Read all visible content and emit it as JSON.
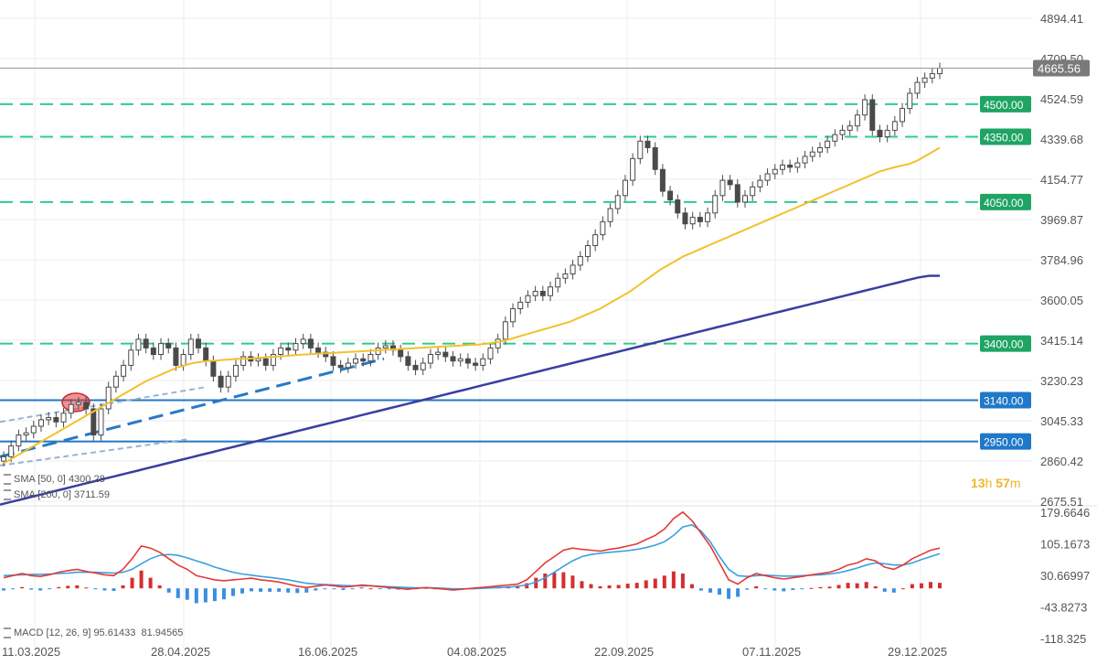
{
  "colors": {
    "candle": "#4a4a4a",
    "sma50": "#f2c12e",
    "sma200": "#3a3f9e",
    "support_dashed": "#2ecc8a",
    "support_solid": "#1f78c8",
    "trendline": "#2879c6",
    "macd_line": "#e53935",
    "signal_line": "#3aa0e0",
    "hist_pos": "#d32f2f",
    "hist_neg": "#3a8ee0",
    "last_price_bg": "#7a7a7a"
  },
  "chart_data": [
    {
      "type": "candlestick",
      "title": "",
      "x_ticks": [
        "11.03.2025",
        "28.04.2025",
        "16.06.2025",
        "04.08.2025",
        "22.09.2025",
        "07.11.2025",
        "29.12.2025"
      ],
      "y_ticks": [
        "4894.41",
        "4709.50",
        "4524.59",
        "4339.68",
        "4154.77",
        "3969.87",
        "3784.96",
        "3600.05",
        "3415.14",
        "3230.23",
        "3045.33",
        "2860.42",
        "2675.51"
      ],
      "ylim": [
        2675.51,
        4894.41
      ],
      "last_price": "4665.56",
      "close_series": [
        2880,
        2930,
        2980,
        2990,
        3020,
        3050,
        3060,
        3040,
        3080,
        3120,
        3130,
        3100,
        2980,
        3100,
        3200,
        3250,
        3300,
        3370,
        3420,
        3380,
        3350,
        3400,
        3380,
        3300,
        3350,
        3420,
        3380,
        3320,
        3250,
        3200,
        3250,
        3300,
        3340,
        3320,
        3330,
        3300,
        3350,
        3380,
        3370,
        3400,
        3420,
        3380,
        3360,
        3340,
        3300,
        3290,
        3310,
        3330,
        3320,
        3350,
        3380,
        3390,
        3370,
        3340,
        3300,
        3280,
        3310,
        3350,
        3360,
        3340,
        3320,
        3330,
        3310,
        3300,
        3330,
        3380,
        3420,
        3500,
        3560,
        3590,
        3620,
        3640,
        3620,
        3660,
        3700,
        3720,
        3760,
        3800,
        3850,
        3900,
        3960,
        4020,
        4080,
        4150,
        4250,
        4330,
        4300,
        4200,
        4100,
        4060,
        4000,
        3950,
        3980,
        3960,
        4000,
        4080,
        4150,
        4130,
        4050,
        4080,
        4120,
        4150,
        4180,
        4200,
        4220,
        4210,
        4230,
        4260,
        4280,
        4300,
        4330,
        4360,
        4380,
        4400,
        4450,
        4520,
        4380,
        4350,
        4380,
        4420,
        4480,
        4550,
        4600,
        4620,
        4640,
        4665.56
      ],
      "series": [
        {
          "name": "SMA [50, 0]",
          "values": [
            2850,
            2870,
            2890,
            2910,
            2930,
            2950,
            2970,
            2990,
            3010,
            3030,
            3050,
            3070,
            3090,
            3110,
            3130,
            3150,
            3170,
            3190,
            3210,
            3230,
            3245,
            3260,
            3275,
            3290,
            3300,
            3310,
            3315,
            3320,
            3322,
            3325,
            3327,
            3330,
            3330,
            3332,
            3335,
            3338,
            3340,
            3342,
            3345,
            3348,
            3350,
            3352,
            3354,
            3356,
            3358,
            3360,
            3362,
            3364,
            3366,
            3368,
            3370,
            3372,
            3374,
            3376,
            3378,
            3380,
            3382,
            3384,
            3386,
            3388,
            3390,
            3392,
            3394,
            3396,
            3400,
            3405,
            3410,
            3420,
            3430,
            3440,
            3450,
            3460,
            3470,
            3480,
            3490,
            3500,
            3515,
            3530,
            3545,
            3560,
            3580,
            3600,
            3620,
            3640,
            3665,
            3690,
            3715,
            3740,
            3760,
            3780,
            3800,
            3815,
            3830,
            3845,
            3860,
            3875,
            3890,
            3905,
            3920,
            3935,
            3950,
            3965,
            3980,
            3995,
            4010,
            4025,
            4040,
            4055,
            4070,
            4085,
            4100,
            4115,
            4130,
            4145,
            4160,
            4175,
            4190,
            4200,
            4210,
            4218,
            4226,
            4240,
            4260,
            4280,
            4300.28
          ]
        },
        {
          "name": "SMA [200, 0]",
          "values": [
            2660,
            2672,
            2684,
            2696,
            2708,
            2720,
            2732,
            2744,
            2756,
            2768,
            2780,
            2792,
            2804,
            2816,
            2828,
            2840,
            2852,
            2864,
            2876,
            2888,
            2900,
            2912,
            2924,
            2936,
            2948,
            2960,
            2972,
            2984,
            2996,
            3008,
            3020,
            3032,
            3044,
            3056,
            3068,
            3080,
            3092,
            3104,
            3116,
            3128,
            3140,
            3152,
            3164,
            3176,
            3188,
            3200,
            3212,
            3224,
            3236,
            3248,
            3260,
            3272,
            3284,
            3296,
            3308,
            3320,
            3332,
            3344,
            3356,
            3368,
            3380,
            3392,
            3404,
            3416,
            3428,
            3440,
            3452,
            3464,
            3476,
            3488,
            3500,
            3512,
            3524,
            3536,
            3548,
            3560,
            3572,
            3584,
            3596,
            3608,
            3620,
            3632,
            3644,
            3656,
            3668,
            3680,
            3692,
            3704,
            3711.59,
            3711.59
          ]
        }
      ],
      "levels": [
        {
          "value": 4500,
          "label": "4500.00",
          "style": "dashed"
        },
        {
          "value": 4350,
          "label": "4350.00",
          "style": "dashed"
        },
        {
          "value": 4050,
          "label": "4050.00",
          "style": "dashed"
        },
        {
          "value": 3400,
          "label": "3400.00",
          "style": "dashed"
        },
        {
          "value": 3140,
          "label": "3140.00",
          "style": "solid"
        },
        {
          "value": 2950,
          "label": "2950.00",
          "style": "solid"
        }
      ]
    },
    {
      "type": "line",
      "title": "",
      "y_ticks": [
        "179.6646",
        "105.1673",
        "30.66997",
        "-43.8273",
        "-118.325"
      ],
      "ylim": [
        -118.325,
        179.6646
      ],
      "macd": [
        25,
        30,
        35,
        30,
        28,
        32,
        38,
        42,
        45,
        40,
        36,
        32,
        30,
        45,
        70,
        100,
        95,
        85,
        70,
        55,
        45,
        30,
        25,
        20,
        18,
        20,
        22,
        24,
        20,
        18,
        15,
        10,
        5,
        2,
        5,
        8,
        6,
        3,
        5,
        8,
        6,
        4,
        2,
        0,
        -2,
        0,
        2,
        0,
        -2,
        -4,
        -2,
        0,
        2,
        4,
        6,
        8,
        10,
        20,
        40,
        60,
        75,
        90,
        95,
        92,
        90,
        88,
        92,
        95,
        100,
        105,
        115,
        125,
        140,
        165,
        180,
        160,
        130,
        100,
        60,
        20,
        10,
        25,
        35,
        30,
        25,
        22,
        25,
        28,
        32,
        35,
        38,
        45,
        55,
        60,
        70,
        65,
        50,
        45,
        55,
        70,
        80,
        90,
        95
      ],
      "signal": [
        30,
        31,
        32,
        33,
        33,
        34,
        35,
        36,
        38,
        38,
        38,
        37,
        36,
        38,
        45,
        58,
        70,
        78,
        80,
        78,
        72,
        65,
        58,
        50,
        44,
        38,
        34,
        31,
        28,
        26,
        23,
        20,
        16,
        12,
        10,
        9,
        8,
        7,
        6,
        6,
        6,
        5,
        4,
        3,
        2,
        1,
        1,
        1,
        0,
        -1,
        -1,
        -1,
        0,
        1,
        2,
        3,
        5,
        8,
        15,
        25,
        38,
        52,
        65,
        75,
        80,
        83,
        85,
        87,
        89,
        92,
        96,
        102,
        110,
        125,
        145,
        150,
        135,
        110,
        75,
        45,
        30,
        28,
        30,
        31,
        30,
        29,
        29,
        30,
        31,
        32,
        34,
        37,
        42,
        48,
        55,
        60,
        58,
        55,
        55,
        60,
        68,
        75,
        82
      ],
      "legend": "MACD [12, 26, 9]",
      "macd_value": "95.61433",
      "signal_value": "81.94565"
    }
  ],
  "legend": {
    "sma50_label": "SMA [50, 0]",
    "sma50_value": "4300.28",
    "sma200_label": "SMA [200, 0]",
    "sma200_value": "3711.59",
    "macd_label": "MACD [12, 26, 9]",
    "macd_value": "95.61433",
    "signal_value": "81.94565"
  },
  "countdown": {
    "hours": "13",
    "h_unit": "h",
    "minutes": "57",
    "m_unit": "m"
  }
}
